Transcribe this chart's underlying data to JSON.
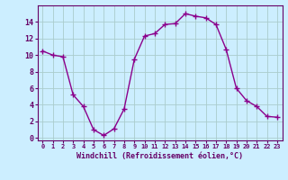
{
  "x": [
    0,
    1,
    2,
    3,
    4,
    5,
    6,
    7,
    8,
    9,
    10,
    11,
    12,
    13,
    14,
    15,
    16,
    17,
    18,
    19,
    20,
    21,
    22,
    23
  ],
  "y": [
    10.5,
    10.0,
    9.8,
    5.2,
    3.8,
    1.0,
    0.3,
    1.1,
    3.5,
    9.5,
    12.3,
    12.6,
    13.7,
    13.8,
    15.0,
    14.7,
    14.5,
    13.7,
    10.7,
    6.0,
    4.5,
    3.8,
    2.6,
    2.5
  ],
  "line_color": "#8b008b",
  "marker": "+",
  "bg_color": "#cceeff",
  "grid_color": "#aacccc",
  "xlabel": "Windchill (Refroidissement éolien,°C)",
  "xlabel_color": "#660066",
  "tick_color": "#660066",
  "spine_color": "#660066",
  "xlim": [
    -0.5,
    23.5
  ],
  "ylim": [
    -0.3,
    16.0
  ],
  "yticks": [
    0,
    2,
    4,
    6,
    8,
    10,
    12,
    14
  ],
  "xticks": [
    0,
    1,
    2,
    3,
    4,
    5,
    6,
    7,
    8,
    9,
    10,
    11,
    12,
    13,
    14,
    15,
    16,
    17,
    18,
    19,
    20,
    21,
    22,
    23
  ],
  "xtick_labels": [
    "0",
    "1",
    "2",
    "3",
    "4",
    "5",
    "6",
    "7",
    "8",
    "9",
    "10",
    "11",
    "12",
    "13",
    "14",
    "15",
    "16",
    "17",
    "18",
    "19",
    "20",
    "21",
    "22",
    "23"
  ]
}
